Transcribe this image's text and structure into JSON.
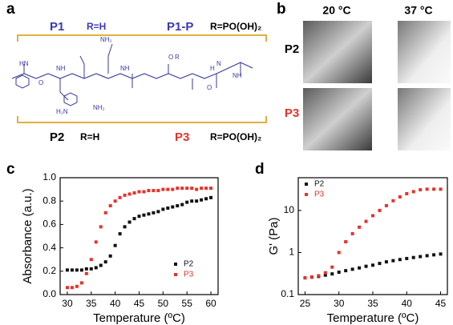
{
  "panel_a": {
    "letter": "a",
    "top_left_name": "P1",
    "top_left_r": "R=H",
    "top_right_name": "P1-P",
    "top_right_r": "R=PO(OH)₂",
    "bottom_left_name": "P2",
    "bottom_left_r": "R=H",
    "bottom_right_name": "P3",
    "bottom_right_r": "R=PO(OH)₂",
    "structure_labels": [
      "HN",
      "O",
      "NH",
      "H₂N",
      "NH₂",
      "NH",
      "O",
      "R",
      "NH₂",
      "O",
      "NH",
      "H",
      "N"
    ]
  },
  "panel_b": {
    "letter": "b",
    "col_1": "20 °C",
    "col_2": "37 °C",
    "row_1": "P2",
    "row_2": "P3"
  },
  "chart_data": [
    {
      "type": "scatter",
      "panel": "c",
      "xlabel": "Temperature (ºC)",
      "ylabel": "Absorbance (a.u.)",
      "xlim": [
        28.5,
        61.5
      ],
      "xticks": [
        30,
        35,
        40,
        45,
        50,
        55,
        60
      ],
      "ylim": [
        0,
        1.0
      ],
      "yticks": [
        {
          "value": 0,
          "label": "0.0"
        },
        0.2,
        0.4,
        0.6,
        0.8,
        {
          "value": 1.0,
          "label": "1.0"
        }
      ],
      "yscale": "linear",
      "legend": "lower right",
      "x": [
        30,
        31,
        32,
        33,
        34,
        35,
        36,
        37,
        38,
        39,
        40,
        41,
        42,
        43,
        44,
        45,
        46,
        47,
        48,
        49,
        50,
        51,
        52,
        53,
        54,
        55,
        56,
        57,
        58,
        59,
        60
      ],
      "series": [
        {
          "name": "P2",
          "color": "#111111",
          "values": [
            0.21,
            0.21,
            0.21,
            0.21,
            0.22,
            0.22,
            0.23,
            0.25,
            0.28,
            0.33,
            0.42,
            0.52,
            0.58,
            0.62,
            0.65,
            0.67,
            0.68,
            0.69,
            0.7,
            0.71,
            0.73,
            0.74,
            0.75,
            0.76,
            0.77,
            0.79,
            0.8,
            0.8,
            0.81,
            0.82,
            0.83
          ]
        },
        {
          "name": "P3",
          "color": "#e8312a",
          "values": [
            0.06,
            0.06,
            0.07,
            0.1,
            0.18,
            0.3,
            0.45,
            0.58,
            0.7,
            0.76,
            0.8,
            0.83,
            0.85,
            0.86,
            0.87,
            0.88,
            0.88,
            0.89,
            0.89,
            0.89,
            0.9,
            0.9,
            0.9,
            0.91,
            0.91,
            0.91,
            0.91,
            0.9,
            0.91,
            0.91,
            0.91
          ]
        }
      ]
    },
    {
      "type": "scatter",
      "panel": "d",
      "xlabel": "Temperature (ºC)",
      "ylabel": "G' (Pa)",
      "xlim": [
        24,
        46
      ],
      "xticks": [
        25,
        30,
        35,
        40,
        45
      ],
      "ylim": [
        0.1,
        60
      ],
      "yticks": [
        0.1,
        1,
        10
      ],
      "yscale": "log",
      "legend": "upper left",
      "x": [
        25,
        26,
        27,
        28,
        29,
        30,
        31,
        32,
        33,
        34,
        35,
        36,
        37,
        38,
        39,
        40,
        41,
        42,
        43,
        44,
        45
      ],
      "series": [
        {
          "name": "P2",
          "color": "#111111",
          "values": [
            0.25,
            0.26,
            0.27,
            0.29,
            0.31,
            0.34,
            0.37,
            0.4,
            0.43,
            0.47,
            0.5,
            0.55,
            0.6,
            0.64,
            0.68,
            0.72,
            0.76,
            0.8,
            0.84,
            0.88,
            0.92
          ]
        },
        {
          "name": "P3",
          "color": "#e8312a",
          "values": [
            0.25,
            0.26,
            0.28,
            0.33,
            0.45,
            1.0,
            1.8,
            2.8,
            4.0,
            5.5,
            7.5,
            10,
            13,
            17,
            21,
            25,
            28,
            31,
            32,
            32,
            32
          ]
        }
      ]
    }
  ]
}
